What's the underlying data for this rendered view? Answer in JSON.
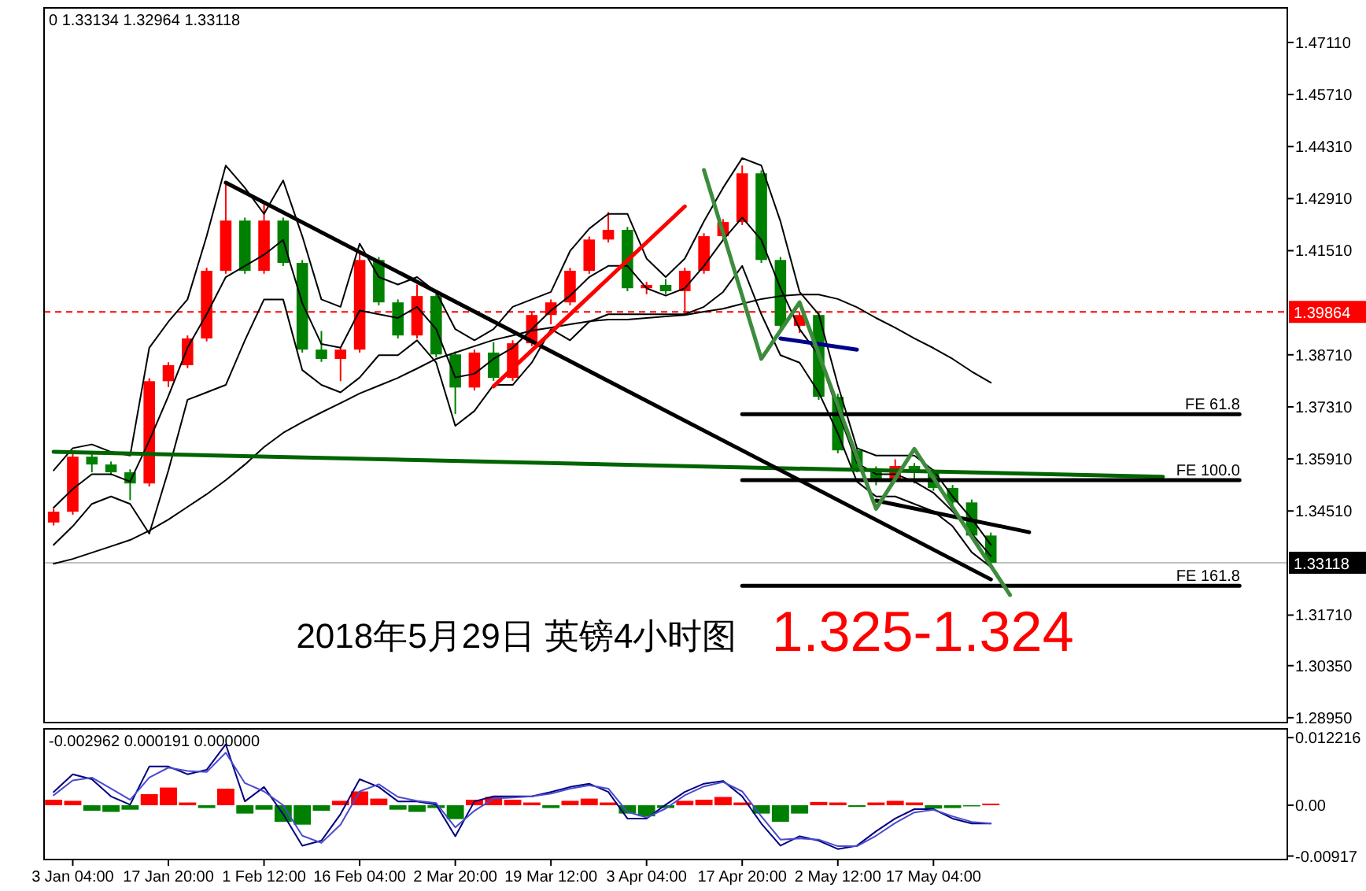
{
  "chart_data": [
    {
      "type": "candlestick",
      "title": "2018年5月29日 英镑4小时图",
      "subtitle": "1.325-1.324",
      "annotations": [
        "0 1.33134 1.32964 1.33118",
        {
          "text": "FE 61.8",
          "y": 1.3711
        },
        {
          "text": "FE 100.0",
          "y": 1.3534
        },
        {
          "text": "FE 161.8",
          "y": 1.325
        }
      ],
      "categories": [
        null,
        null,
        null,
        null,
        null,
        null,
        null,
        null,
        null,
        null,
        null,
        null,
        null,
        null,
        null,
        null,
        null,
        null,
        null,
        null,
        null,
        null,
        null,
        null,
        null,
        null,
        null,
        null,
        null,
        null,
        null,
        null,
        null,
        null,
        null,
        null,
        null,
        null,
        null,
        null,
        null,
        null,
        null,
        null,
        null,
        null,
        null,
        null,
        null,
        null,
        null,
        null,
        null,
        null,
        null,
        null,
        null,
        null,
        null,
        null,
        null,
        null,
        null,
        null,
        null
      ],
      "ohlc": [
        [
          1.342,
          1.3457,
          1.3412,
          1.3449
        ],
        [
          1.3449,
          1.3605,
          1.3441,
          1.3597
        ],
        [
          1.3597,
          1.3605,
          1.3555,
          1.3576
        ],
        [
          1.3576,
          1.3584,
          1.3547,
          1.3555
        ],
        [
          1.3555,
          1.3563,
          1.348,
          1.3525
        ],
        [
          1.3525,
          1.3808,
          1.3517,
          1.38
        ],
        [
          1.38,
          1.3851,
          1.3784,
          1.3843
        ],
        [
          1.3843,
          1.3923,
          1.3835,
          1.3915
        ],
        [
          1.3915,
          1.4105,
          1.3907,
          1.4097
        ],
        [
          1.4097,
          1.433,
          1.4089,
          1.4232
        ],
        [
          1.4232,
          1.424,
          1.4089,
          1.4097
        ],
        [
          1.4097,
          1.4275,
          1.4089,
          1.4232
        ],
        [
          1.4232,
          1.424,
          1.411,
          1.4118
        ],
        [
          1.4118,
          1.4126,
          1.3877,
          1.3885
        ],
        [
          1.3885,
          1.3935,
          1.3852,
          1.386
        ],
        [
          1.386,
          1.3893,
          1.38,
          1.3885
        ],
        [
          1.3885,
          1.4145,
          1.3877,
          1.4126
        ],
        [
          1.4126,
          1.4134,
          1.4004,
          1.4012
        ],
        [
          1.4012,
          1.402,
          1.3915,
          1.3923
        ],
        [
          1.3923,
          1.406,
          1.3915,
          1.4029
        ],
        [
          1.4029,
          1.4037,
          1.3864,
          1.3872
        ],
        [
          1.3872,
          1.388,
          1.3712,
          1.3783
        ],
        [
          1.3783,
          1.3885,
          1.3775,
          1.3877
        ],
        [
          1.3877,
          1.3905,
          1.3801,
          1.3809
        ],
        [
          1.3809,
          1.391,
          1.3801,
          1.3902
        ],
        [
          1.3902,
          1.3986,
          1.3894,
          1.3978
        ],
        [
          1.3978,
          1.402,
          1.3953,
          1.4012
        ],
        [
          1.4012,
          1.4105,
          1.4004,
          1.4097
        ],
        [
          1.4097,
          1.4189,
          1.4089,
          1.4181
        ],
        [
          1.4181,
          1.4255,
          1.4173,
          1.4207
        ],
        [
          1.4207,
          1.4215,
          1.4042,
          1.405
        ],
        [
          1.405,
          1.4067,
          1.4034,
          1.4059
        ],
        [
          1.4059,
          1.4075,
          1.4034,
          1.4042
        ],
        [
          1.4042,
          1.4105,
          1.398,
          1.4097
        ],
        [
          1.4097,
          1.4198,
          1.4089,
          1.419
        ],
        [
          1.419,
          1.4236,
          1.4182,
          1.4228
        ],
        [
          1.4228,
          1.438,
          1.422,
          1.4359
        ],
        [
          1.4359,
          1.4367,
          1.4118,
          1.4126
        ],
        [
          1.4126,
          1.4134,
          1.3941,
          1.3949
        ],
        [
          1.3949,
          1.3986,
          1.393,
          1.3978
        ],
        [
          1.3978,
          1.3986,
          1.375,
          1.3758
        ],
        [
          1.3758,
          1.3766,
          1.3606,
          1.3614
        ],
        [
          1.3614,
          1.3622,
          1.3555,
          1.3563
        ],
        [
          1.3563,
          1.3571,
          1.352,
          1.3538
        ],
        [
          1.3538,
          1.359,
          1.353,
          1.3572
        ],
        [
          1.3572,
          1.358,
          1.3525,
          1.3555
        ],
        [
          1.3555,
          1.3563,
          1.3505,
          1.3513
        ],
        [
          1.3513,
          1.3521,
          1.3466,
          1.3474
        ],
        [
          1.3474,
          1.3482,
          1.3377,
          1.3385
        ],
        [
          1.3385,
          1.3393,
          1.32964,
          1.33118
        ],
        null,
        null,
        null,
        null,
        null,
        null,
        null,
        null,
        null,
        null,
        null,
        null,
        null,
        null,
        null
      ],
      "colors": [
        "#ff0000",
        "#ff0000",
        "#008000",
        "#008000",
        "#008000",
        "#ff0000",
        "#ff0000",
        "#ff0000",
        "#ff0000",
        "#ff0000",
        "#008000",
        "#ff0000",
        "#008000",
        "#008000",
        "#008000",
        "#ff0000",
        "#ff0000",
        "#008000",
        "#008000",
        "#ff0000",
        "#008000",
        "#008000",
        "#ff0000",
        "#008000",
        "#ff0000",
        "#ff0000",
        "#ff0000",
        "#ff0000",
        "#ff0000",
        "#ff0000",
        "#008000",
        "#ff0000",
        "#008000",
        "#ff0000",
        "#ff0000",
        "#ff0000",
        "#ff0000",
        "#008000",
        "#008000",
        "#ff0000",
        "#008000",
        "#008000",
        "#008000",
        "#008000",
        "#ff0000",
        "#008000",
        "#008000",
        "#008000",
        "#008000",
        "#008000",
        null,
        null,
        null,
        null,
        null,
        null,
        null,
        null,
        null,
        null,
        null,
        null,
        null,
        null,
        null
      ],
      "series": [
        {
          "type": "line",
          "color": "#000000",
          "values": [
            1.3309,
            1.3322,
            1.3339,
            1.3356,
            1.3373,
            1.3398,
            1.3428,
            1.3462,
            1.3496,
            1.3534,
            1.3576,
            1.3623,
            1.3661,
            1.369,
            1.3716,
            1.3741,
            1.3767,
            1.3788,
            1.3809,
            1.3834,
            1.386,
            1.3877,
            1.3894,
            1.3911,
            1.3923,
            1.3936,
            1.3944,
            1.3953,
            1.3961,
            1.3966,
            1.3966,
            1.397,
            1.3974,
            1.3978,
            1.3987,
            1.3995,
            1.4008,
            1.4021,
            1.4029,
            1.4033,
            1.4033,
            1.4021,
            1.3999,
            1.397,
            1.3944,
            1.3915,
            1.3889,
            1.386,
            1.3826,
            1.3796,
            null,
            null,
            null,
            null,
            null,
            null,
            null,
            null,
            null,
            null,
            null,
            null,
            null,
            null,
            null
          ]
        },
        {
          "type": "line",
          "color": "#000000",
          "values": [
            1.356,
            1.362,
            1.363,
            1.361,
            1.36,
            1.389,
            1.396,
            1.402,
            1.419,
            1.438,
            1.432,
            1.425,
            1.434,
            1.419,
            1.402,
            1.4,
            1.417,
            1.408,
            1.406,
            1.408,
            1.404,
            1.394,
            1.391,
            1.394,
            1.4,
            1.402,
            1.404,
            1.415,
            1.421,
            1.425,
            1.425,
            1.413,
            1.408,
            1.413,
            1.423,
            1.432,
            1.44,
            1.438,
            1.423,
            1.404,
            1.398,
            1.379,
            1.362,
            1.36,
            1.36,
            1.36,
            1.356,
            1.349,
            1.343,
            1.336,
            null,
            null,
            null,
            null,
            null,
            null,
            null,
            null,
            null,
            null,
            null,
            null,
            null,
            null,
            null
          ]
        },
        {
          "type": "line",
          "color": "#000000",
          "values": [
            1.346,
            1.351,
            1.355,
            1.355,
            1.353,
            1.364,
            1.376,
            1.389,
            1.398,
            1.408,
            1.411,
            1.414,
            1.418,
            1.401,
            1.39,
            1.389,
            1.399,
            1.398,
            1.397,
            1.4,
            1.394,
            1.381,
            1.382,
            1.386,
            1.389,
            1.394,
            1.399,
            1.403,
            1.408,
            1.411,
            1.411,
            1.405,
            1.403,
            1.405,
            1.411,
            1.418,
            1.424,
            1.418,
            1.405,
            1.394,
            1.387,
            1.372,
            1.358,
            1.355,
            1.355,
            1.353,
            1.35,
            1.345,
            1.339,
            1.333,
            null,
            null,
            null,
            null,
            null,
            null,
            null,
            null,
            null,
            null,
            null,
            null,
            null,
            null,
            null
          ]
        },
        {
          "type": "line",
          "color": "#000000",
          "values": [
            1.336,
            1.341,
            1.347,
            1.349,
            1.347,
            1.339,
            1.356,
            1.375,
            1.377,
            1.379,
            1.391,
            1.402,
            1.402,
            1.383,
            1.379,
            1.377,
            1.381,
            1.387,
            1.387,
            1.391,
            1.385,
            1.368,
            1.372,
            1.379,
            1.379,
            1.385,
            1.394,
            1.391,
            1.396,
            1.398,
            1.398,
            1.398,
            1.398,
            1.398,
            1.4,
            1.404,
            1.411,
            1.398,
            1.387,
            1.385,
            1.377,
            1.366,
            1.353,
            1.349,
            1.349,
            1.347,
            1.345,
            1.341,
            1.334,
            1.33,
            null,
            null,
            null,
            null,
            null,
            null,
            null,
            null,
            null,
            null,
            null,
            null,
            null,
            null,
            null
          ]
        },
        {
          "type": "line",
          "color": "#006400",
          "values": [
            1.361,
            null,
            null,
            null,
            null,
            null,
            null,
            null,
            null,
            null,
            null,
            null,
            null,
            null,
            null,
            null,
            null,
            null,
            null,
            null,
            null,
            null,
            null,
            null,
            null,
            null,
            null,
            null,
            null,
            null,
            null,
            null,
            null,
            null,
            null,
            null,
            null,
            null,
            null,
            null,
            null,
            null,
            null,
            null,
            null,
            null,
            null,
            null,
            null,
            null,
            null,
            null,
            null,
            null,
            null,
            null,
            null,
            null,
            1.3543,
            null,
            null,
            null,
            null,
            null,
            null
          ]
        },
        {
          "type": "line",
          "color": "#000000",
          "values": [
            null,
            null,
            null,
            null,
            null,
            null,
            null,
            null,
            null,
            1.4334,
            null,
            null,
            null,
            null,
            null,
            null,
            null,
            null,
            null,
            null,
            null,
            null,
            null,
            null,
            null,
            null,
            null,
            null,
            null,
            null,
            null,
            null,
            null,
            null,
            null,
            null,
            null,
            null,
            null,
            null,
            null,
            null,
            null,
            null,
            null,
            null,
            null,
            null,
            null,
            1.3267,
            null,
            null,
            null,
            null,
            null,
            null,
            null,
            null,
            null,
            null,
            null,
            null,
            null,
            null,
            null
          ]
        },
        {
          "type": "line",
          "color": "#ff0000",
          "values": [
            null,
            null,
            null,
            null,
            null,
            null,
            null,
            null,
            null,
            null,
            null,
            null,
            null,
            null,
            null,
            null,
            null,
            null,
            null,
            null,
            null,
            null,
            null,
            1.3786,
            null,
            null,
            null,
            null,
            null,
            null,
            null,
            null,
            null,
            1.427,
            null,
            null,
            null,
            null,
            null,
            null,
            null,
            null,
            null,
            null,
            null,
            null,
            null,
            null,
            null,
            null,
            null,
            null,
            null,
            null,
            null,
            null,
            null,
            null,
            null,
            null,
            null,
            null,
            null,
            null,
            null
          ]
        },
        {
          "type": "line",
          "color": "#00008b",
          "values": [
            null,
            null,
            null,
            null,
            null,
            null,
            null,
            null,
            null,
            null,
            null,
            null,
            null,
            null,
            null,
            null,
            null,
            null,
            null,
            null,
            null,
            null,
            null,
            null,
            null,
            null,
            null,
            null,
            null,
            null,
            null,
            null,
            null,
            null,
            null,
            null,
            null,
            null,
            1.3915,
            null,
            null,
            null,
            1.3885,
            null,
            null,
            null,
            null,
            null,
            null,
            null,
            null,
            null,
            null,
            null,
            null,
            null,
            null,
            null,
            null,
            null,
            null,
            null,
            null,
            null,
            null
          ]
        },
        {
          "type": "line",
          "color": "#000000",
          "values": [
            null,
            null,
            null,
            null,
            null,
            null,
            null,
            null,
            null,
            null,
            null,
            null,
            null,
            null,
            null,
            null,
            null,
            null,
            null,
            null,
            null,
            null,
            null,
            null,
            null,
            null,
            null,
            null,
            null,
            null,
            null,
            null,
            null,
            null,
            null,
            null,
            null,
            null,
            null,
            null,
            null,
            null,
            null,
            1.3479,
            null,
            null,
            null,
            null,
            null,
            null,
            null,
            1.3394,
            null,
            null,
            null,
            null,
            null,
            null,
            null,
            null,
            null,
            null,
            null,
            null,
            null
          ]
        },
        {
          "type": "line",
          "color": "#000000",
          "values": [
            null,
            null,
            null,
            null,
            null,
            null,
            null,
            null,
            null,
            null,
            null,
            null,
            null,
            null,
            null,
            null,
            null,
            null,
            null,
            null,
            null,
            null,
            null,
            null,
            null,
            null,
            null,
            null,
            null,
            null,
            null,
            null,
            null,
            null,
            null,
            null,
            1.3711,
            null,
            null,
            null,
            null,
            null,
            null,
            null,
            null,
            null,
            null,
            null,
            null,
            null,
            null,
            null,
            null,
            null,
            null,
            null,
            null,
            null,
            null,
            null,
            null,
            null,
            1.3711,
            null,
            null
          ]
        },
        {
          "type": "line",
          "color": "#000000",
          "values": [
            null,
            null,
            null,
            null,
            null,
            null,
            null,
            null,
            null,
            null,
            null,
            null,
            null,
            null,
            null,
            null,
            null,
            null,
            null,
            null,
            null,
            null,
            null,
            null,
            null,
            null,
            null,
            null,
            null,
            null,
            null,
            null,
            null,
            null,
            null,
            null,
            1.3534,
            null,
            null,
            null,
            null,
            null,
            null,
            null,
            null,
            null,
            null,
            null,
            null,
            null,
            null,
            null,
            null,
            null,
            null,
            null,
            null,
            null,
            null,
            null,
            null,
            null,
            1.3534,
            null,
            null
          ]
        },
        {
          "type": "line",
          "color": "#000000",
          "values": [
            null,
            null,
            null,
            null,
            null,
            null,
            null,
            null,
            null,
            null,
            null,
            null,
            null,
            null,
            null,
            null,
            null,
            null,
            null,
            null,
            null,
            null,
            null,
            null,
            null,
            null,
            null,
            null,
            null,
            null,
            null,
            null,
            null,
            null,
            null,
            null,
            1.325,
            null,
            null,
            null,
            null,
            null,
            null,
            null,
            null,
            null,
            null,
            null,
            null,
            null,
            null,
            null,
            null,
            null,
            null,
            null,
            null,
            null,
            null,
            null,
            null,
            null,
            1.325,
            null,
            null
          ]
        },
        {
          "type": "line",
          "color": "#3c8c3c",
          "values": [
            null,
            null,
            null,
            null,
            null,
            null,
            null,
            null,
            null,
            null,
            null,
            null,
            null,
            null,
            null,
            null,
            null,
            null,
            null,
            null,
            null,
            null,
            null,
            null,
            null,
            null,
            null,
            null,
            null,
            null,
            null,
            null,
            null,
            null,
            1.4368,
            null,
            null,
            1.386,
            null,
            1.4012,
            null,
            null,
            null,
            1.3457,
            null,
            1.3618,
            null,
            null,
            null,
            null,
            1.3225,
            null,
            null,
            null,
            null,
            null,
            null,
            null,
            null,
            null,
            null,
            null,
            null,
            null,
            null
          ]
        }
      ],
      "ref_lines": [
        {
          "axis": "y",
          "value": 1.39864,
          "label": "1.39864",
          "color": "#ff0000",
          "line_style": "dashed"
        },
        {
          "axis": "y",
          "value": 1.33118,
          "label": "1.33118",
          "color": "#c0c0c0"
        }
      ],
      "ylim": [
        1.2882,
        1.4804
      ],
      "yticks": [
        {
          "value": 1.4711,
          "label": "1.47110"
        },
        {
          "value": 1.4571,
          "label": "1.45710"
        },
        {
          "value": 1.4431,
          "label": "1.44310"
        },
        {
          "value": 1.4291,
          "label": "1.42910"
        },
        {
          "value": 1.4151,
          "label": "1.41510"
        },
        {
          "value": 1.3871,
          "label": "1.38710"
        },
        {
          "value": 1.3731,
          "label": "1.37310"
        },
        {
          "value": 1.3591,
          "label": "1.35910"
        },
        {
          "value": 1.3451,
          "label": "1.34510"
        },
        {
          "value": 1.3171,
          "label": "1.31710"
        },
        {
          "value": 1.3035,
          "label": "1.30350"
        },
        {
          "value": 1.2895,
          "label": "1.28950"
        }
      ],
      "tick_labels": "y"
    },
    {
      "type": "bar",
      "annotations": [
        "-0.002962 0.000191 0.000000"
      ],
      "categories": [
        null,
        "3 Jan 04:00",
        null,
        null,
        null,
        null,
        "17 Jan 20:00",
        null,
        null,
        null,
        null,
        "1 Feb 12:00",
        null,
        null,
        null,
        null,
        "16 Feb 04:00",
        null,
        null,
        null,
        null,
        "2 Mar 20:00",
        null,
        null,
        null,
        null,
        "19 Mar 12:00",
        null,
        null,
        null,
        null,
        "3 Apr 04:00",
        null,
        null,
        null,
        null,
        "17 Apr 20:00",
        null,
        null,
        null,
        null,
        "2 May 12:00",
        null,
        null,
        null,
        null,
        "17 May 04:00",
        null,
        null,
        null,
        null,
        null,
        null,
        null,
        null,
        null,
        null,
        null,
        null,
        null,
        null,
        null,
        null,
        null,
        null
      ],
      "values": [
        0.001,
        0.0008,
        -0.001,
        -0.0012,
        -0.0008,
        0.002,
        0.0032,
        0.0005,
        -0.0005,
        0.003,
        -0.0015,
        -0.0008,
        -0.003,
        -0.0035,
        -0.001,
        0.0008,
        0.0025,
        0.0012,
        -0.0008,
        -0.0012,
        -0.0005,
        -0.0025,
        0.001,
        0.0015,
        0.001,
        0.0005,
        -0.0005,
        0.0008,
        0.0012,
        0.0005,
        -0.0015,
        -0.002,
        -0.0005,
        0.0008,
        0.001,
        0.0015,
        0.0005,
        -0.0015,
        -0.003,
        -0.0015,
        0.0006,
        0.0005,
        -0.0003,
        0.0005,
        0.0008,
        0.0005,
        -0.0006,
        -0.0005,
        -0.0002,
        0.0003,
        null,
        null,
        null,
        null,
        null,
        null,
        null,
        null,
        null,
        null,
        null,
        null,
        null,
        null,
        null
      ],
      "colors": [
        "#ff0000",
        "#ff0000",
        "#008000",
        "#008000",
        "#008000",
        "#ff0000",
        "#ff0000",
        "#ff0000",
        "#008000",
        "#ff0000",
        "#008000",
        "#008000",
        "#008000",
        "#008000",
        "#008000",
        "#ff0000",
        "#ff0000",
        "#ff0000",
        "#008000",
        "#008000",
        "#008000",
        "#008000",
        "#ff0000",
        "#ff0000",
        "#ff0000",
        "#ff0000",
        "#008000",
        "#ff0000",
        "#ff0000",
        "#ff0000",
        "#008000",
        "#008000",
        "#008000",
        "#ff0000",
        "#ff0000",
        "#ff0000",
        "#ff0000",
        "#008000",
        "#008000",
        "#008000",
        "#ff0000",
        "#ff0000",
        "#008000",
        "#ff0000",
        "#ff0000",
        "#ff0000",
        "#008000",
        "#008000",
        "#008000",
        "#ff0000",
        null,
        null,
        null,
        null,
        null,
        null,
        null,
        null,
        null,
        null,
        null,
        null,
        null,
        null,
        null
      ],
      "series": [
        {
          "type": "line",
          "color": "#000080",
          "values": [
            0.0024,
            0.0056,
            0.0047,
            0.0016,
            0.0001,
            0.007,
            0.007,
            0.0056,
            0.0064,
            0.011,
            0.0007,
            0.0033,
            -0.0016,
            -0.0073,
            -0.0064,
            -0.0016,
            0.0047,
            0.0033,
            0.0007,
            0.0007,
            0.0001,
            -0.0056,
            0.0007,
            0.0016,
            0.0016,
            0.0016,
            0.0024,
            0.0033,
            0.0039,
            0.0024,
            -0.0024,
            -0.0024,
            0.0001,
            0.0024,
            0.0039,
            0.0044,
            0.0016,
            -0.0033,
            -0.0073,
            -0.0056,
            -0.0064,
            -0.0079,
            -0.0073,
            -0.0047,
            -0.0024,
            -0.0007,
            -0.0007,
            -0.0024,
            -0.0033,
            -0.0033,
            null,
            null,
            null,
            null,
            null,
            null,
            null,
            null,
            null,
            null,
            null,
            null,
            null,
            null,
            null
          ]
        },
        {
          "type": "line",
          "color": "#4a4ad0",
          "values": [
            0.0018,
            0.0045,
            0.005,
            0.003,
            0.001,
            0.005,
            0.0068,
            0.0062,
            0.006,
            0.0095,
            0.004,
            0.0025,
            0.0,
            -0.0055,
            -0.0068,
            -0.0035,
            0.0025,
            0.0038,
            0.0015,
            0.0008,
            0.0004,
            -0.004,
            -0.001,
            0.0012,
            0.0014,
            0.0016,
            0.0021,
            0.003,
            0.0036,
            0.003,
            -0.0012,
            -0.0022,
            -0.0006,
            0.0018,
            0.0034,
            0.0042,
            0.0025,
            -0.002,
            -0.0062,
            -0.006,
            -0.0062,
            -0.0074,
            -0.0074,
            -0.0055,
            -0.0032,
            -0.0013,
            -0.0008,
            -0.002,
            -0.003,
            -0.0033,
            null,
            null,
            null,
            null,
            null,
            null,
            null,
            null,
            null,
            null,
            null,
            null,
            null,
            null,
            null
          ]
        }
      ],
      "ylim": [
        -0.0098,
        0.0138
      ],
      "yticks": [
        {
          "value": 0.012216,
          "label": "0.012216"
        },
        {
          "value": 0,
          "label": "0.00"
        },
        {
          "value": -0.00917,
          "label": "-0.00917"
        }
      ]
    }
  ]
}
